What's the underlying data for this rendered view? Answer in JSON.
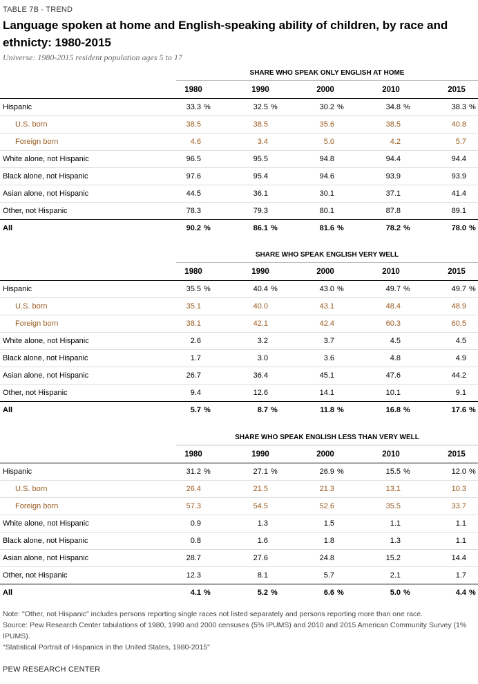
{
  "kicker": "TABLE 7B - TREND",
  "title": "Language spoken at home and English-speaking ability of children, by race and ethnicty: 1980-2015",
  "universe": "Universe: 1980-2015 resident population ages 5 to 17",
  "years": [
    "1980",
    "1990",
    "2000",
    "2010",
    "2015"
  ],
  "percent_sign": "%",
  "sections": [
    {
      "heading": "SHARE WHO SPEAK ONLY ENGLISH AT HOME",
      "rows": [
        {
          "label": "Hispanic",
          "type": "main",
          "pct": true,
          "values": [
            "33.3",
            "32.5",
            "30.2",
            "34.8",
            "38.3"
          ]
        },
        {
          "label": "U.S. born",
          "type": "sub",
          "pct": false,
          "values": [
            "38.5",
            "38.5",
            "35.6",
            "38.5",
            "40.8"
          ]
        },
        {
          "label": "Foreign born",
          "type": "sub",
          "pct": false,
          "values": [
            "4.6",
            "3.4",
            "5.0",
            "4.2",
            "5.7"
          ]
        },
        {
          "label": "White alone, not Hispanic",
          "type": "main",
          "pct": false,
          "values": [
            "96.5",
            "95.5",
            "94.8",
            "94.4",
            "94.4"
          ]
        },
        {
          "label": "Black alone, not Hispanic",
          "type": "main",
          "pct": false,
          "values": [
            "97.6",
            "95.4",
            "94.6",
            "93.9",
            "93.9"
          ]
        },
        {
          "label": "Asian alone, not Hispanic",
          "type": "main",
          "pct": false,
          "values": [
            "44.5",
            "36.1",
            "30.1",
            "37.1",
            "41.4"
          ]
        },
        {
          "label": "Other, not Hispanic",
          "type": "main",
          "pct": false,
          "values": [
            "78.3",
            "79.3",
            "80.1",
            "87.8",
            "89.1"
          ]
        },
        {
          "label": "All",
          "type": "total",
          "pct": true,
          "values": [
            "90.2",
            "86.1",
            "81.6",
            "78.2",
            "78.0"
          ]
        }
      ]
    },
    {
      "heading": "SHARE WHO SPEAK ENGLISH VERY WELL",
      "rows": [
        {
          "label": "Hispanic",
          "type": "main",
          "pct": true,
          "values": [
            "35.5",
            "40.4",
            "43.0",
            "49.7",
            "49.7"
          ]
        },
        {
          "label": "U.S. born",
          "type": "sub",
          "pct": false,
          "values": [
            "35.1",
            "40.0",
            "43.1",
            "48.4",
            "48.9"
          ]
        },
        {
          "label": "Foreign born",
          "type": "sub",
          "pct": false,
          "values": [
            "38.1",
            "42.1",
            "42.4",
            "60.3",
            "60.5"
          ]
        },
        {
          "label": "White alone, not Hispanic",
          "type": "main",
          "pct": false,
          "values": [
            "2.6",
            "3.2",
            "3.7",
            "4.5",
            "4.5"
          ]
        },
        {
          "label": "Black alone, not Hispanic",
          "type": "main",
          "pct": false,
          "values": [
            "1.7",
            "3.0",
            "3.6",
            "4.8",
            "4.9"
          ]
        },
        {
          "label": "Asian alone, not Hispanic",
          "type": "main",
          "pct": false,
          "values": [
            "26.7",
            "36.4",
            "45.1",
            "47.6",
            "44.2"
          ]
        },
        {
          "label": "Other, not Hispanic",
          "type": "main",
          "pct": false,
          "values": [
            "9.4",
            "12.6",
            "14.1",
            "10.1",
            "9.1"
          ]
        },
        {
          "label": "All",
          "type": "total",
          "pct": true,
          "values": [
            "5.7",
            "8.7",
            "11.8",
            "16.8",
            "17.6"
          ]
        }
      ]
    },
    {
      "heading": "SHARE WHO SPEAK ENGLISH LESS THAN VERY WELL",
      "rows": [
        {
          "label": "Hispanic",
          "type": "main",
          "pct": true,
          "values": [
            "31.2",
            "27.1",
            "26.9",
            "15.5",
            "12.0"
          ]
        },
        {
          "label": "U.S. born",
          "type": "sub",
          "pct": false,
          "values": [
            "26.4",
            "21.5",
            "21.3",
            "13.1",
            "10.3"
          ]
        },
        {
          "label": "Foreign born",
          "type": "sub",
          "pct": false,
          "values": [
            "57.3",
            "54.5",
            "52.6",
            "35.5",
            "33.7"
          ]
        },
        {
          "label": "White alone, not Hispanic",
          "type": "main",
          "pct": false,
          "values": [
            "0.9",
            "1.3",
            "1.5",
            "1.1",
            "1.1"
          ]
        },
        {
          "label": "Black alone, not Hispanic",
          "type": "main",
          "pct": false,
          "values": [
            "0.8",
            "1.6",
            "1.8",
            "1.3",
            "1.1"
          ]
        },
        {
          "label": "Asian alone, not Hispanic",
          "type": "main",
          "pct": false,
          "values": [
            "28.7",
            "27.6",
            "24.8",
            "15.2",
            "14.4"
          ]
        },
        {
          "label": "Other, not Hispanic",
          "type": "main",
          "pct": false,
          "values": [
            "12.3",
            "8.1",
            "5.7",
            "2.1",
            "1.7"
          ]
        },
        {
          "label": "All",
          "type": "total",
          "pct": true,
          "values": [
            "4.1",
            "5.2",
            "6.6",
            "5.0",
            "4.4"
          ]
        }
      ]
    }
  ],
  "notes": [
    "Note: \"Other, not Hispanic\" includes persons reporting single races not listed separately and persons reporting more than one race.",
    "Source: Pew Research Center tabulations of 1980, 1990 and 2000 censuses (5% IPUMS) and 2010 and 2015 American Community Survey (1% IPUMS).",
    "\"Statistical Portrait of Hispanics in the United States, 1980-2015\""
  ],
  "footer": "PEW RESEARCH CENTER",
  "colors": {
    "subgroup_text": "#9a5a1e",
    "rule": "#000000",
    "separator": "#dcdcdc"
  }
}
